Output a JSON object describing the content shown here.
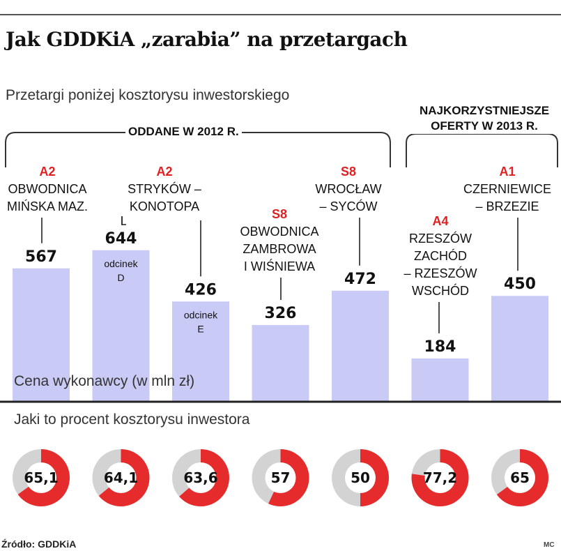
{
  "title": "Jak GDDKiA „zarabia” na przetargach",
  "subtitle": "Przetargi poniżej kosztorysu inwestorskiego",
  "groups": [
    {
      "label": "ODDANE W 2012 R."
    },
    {
      "label": "NAJKORZYSTNIEJSZE OFERTY W 2013 R."
    }
  ],
  "ylabel": "Cena wykonawcy (w mln zł)",
  "pct_heading": "Jaki to procent kosztorysu inwestora",
  "source": "Źródło: GDDKiA",
  "author": "MC",
  "chart_data": {
    "type": "bar",
    "title": "Jak GDDKiA „zarabia” na przetargach",
    "ylabel": "Cena wykonawcy (w mln zł)",
    "ylim": [
      0,
      700
    ],
    "bar_color": "#c9caf5",
    "donut_red": "#e52b2b",
    "donut_grey": "#d3d3d3",
    "categories": [
      {
        "code": "A2",
        "name": [
          "OBWODNICA",
          "MIŃSKA MAZ."
        ],
        "value": 567,
        "note": [],
        "percent": 65.1,
        "percent_label": "65,1"
      },
      {
        "code": "A2",
        "name": [
          "STRYKÓW –",
          "KONOTOPA"
        ],
        "value": 644,
        "note": [
          "odcinek",
          "D"
        ],
        "percent": 64.1,
        "percent_label": "64,1"
      },
      {
        "code": "",
        "name": [],
        "value": 426,
        "note": [
          "odcinek",
          "E"
        ],
        "percent": 63.6,
        "percent_label": "63,6"
      },
      {
        "code": "S8",
        "name": [
          "OBWODNICA",
          "ZAMBROWA",
          "I WIŚNIEWA"
        ],
        "value": 326,
        "note": [],
        "percent": 57,
        "percent_label": "57"
      },
      {
        "code": "S8",
        "name": [
          "WROCŁAW",
          "– SYCÓW"
        ],
        "value": 472,
        "note": [],
        "percent": 50,
        "percent_label": "50"
      },
      {
        "code": "A4",
        "name": [
          "RZESZÓW",
          "ZACHÓD",
          "– RZESZÓW",
          "WSCHÓD"
        ],
        "value": 184,
        "note": [],
        "percent": 77.2,
        "percent_label": "77,2"
      },
      {
        "code": "A1",
        "name": [
          "CZERNIEWICE",
          "– BRZEZIE"
        ],
        "value": 450,
        "note": [],
        "percent": 65,
        "percent_label": "65"
      }
    ]
  }
}
